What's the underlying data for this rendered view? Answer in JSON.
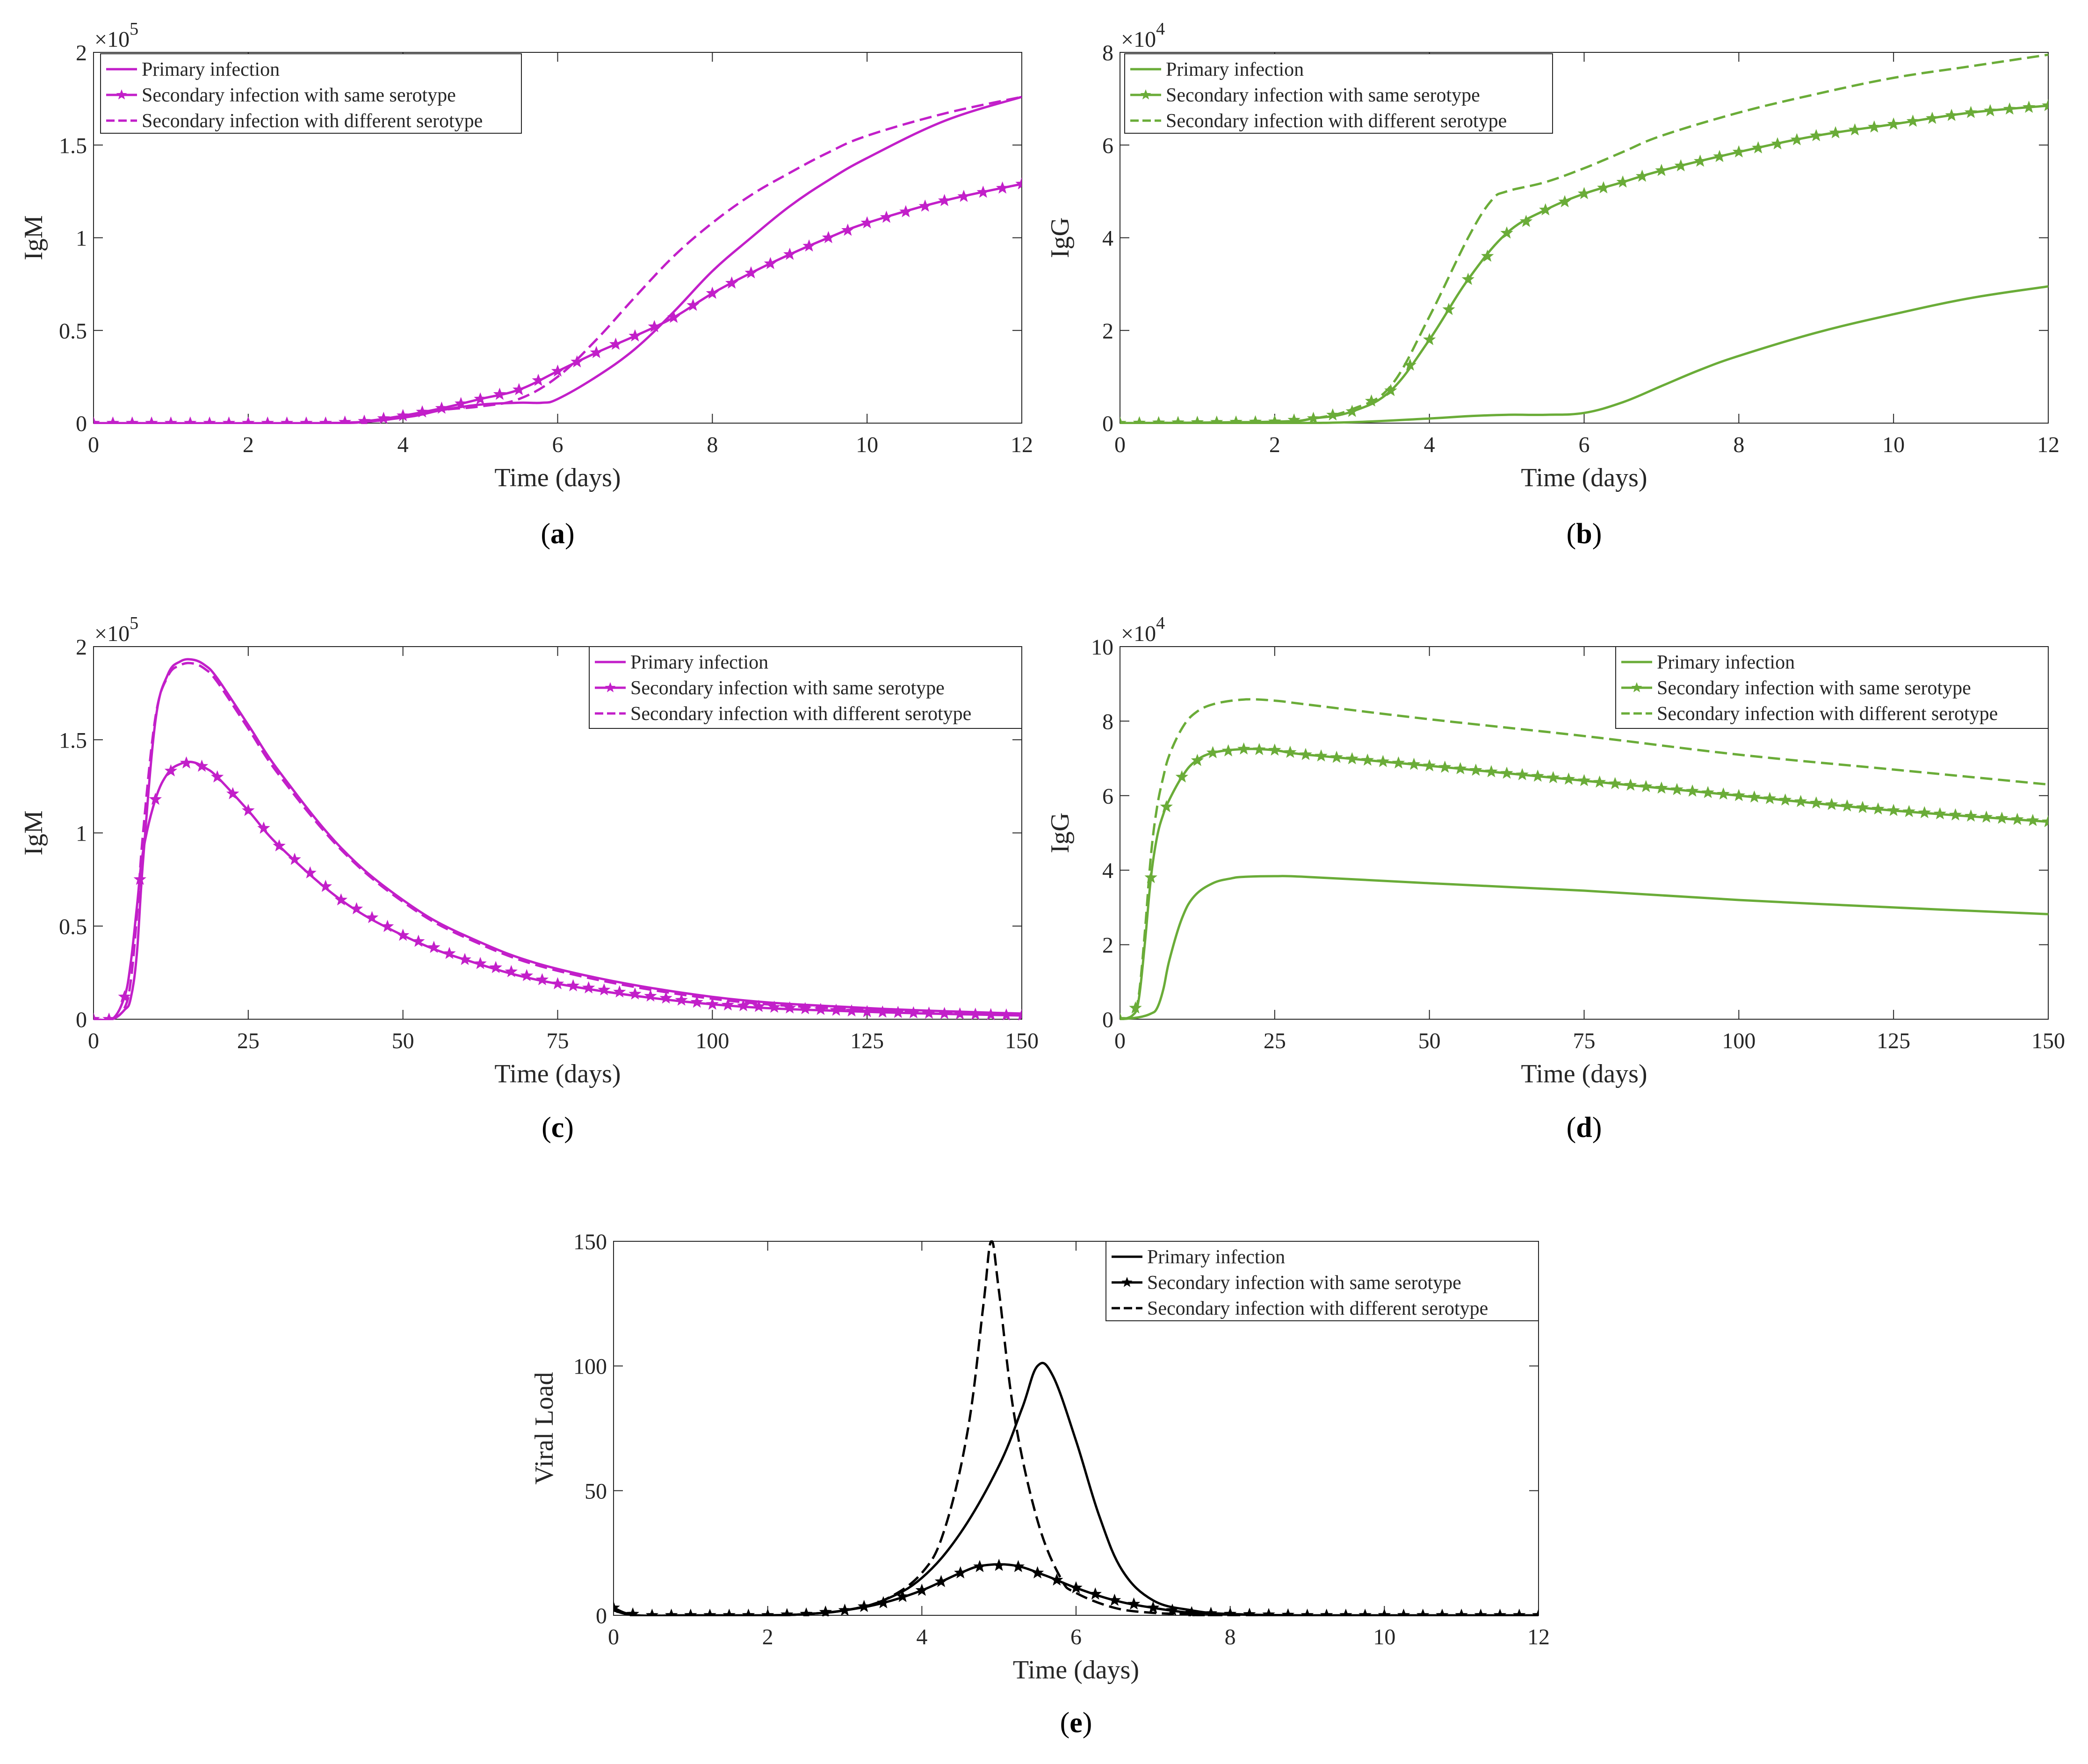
{
  "figure": {
    "legend_labels": [
      "Primary infection",
      "Secondary infection with same serotype",
      "Secondary infection with different serotype"
    ]
  },
  "chart_data": [
    {
      "id": "a",
      "type": "line",
      "caption": "a",
      "title": "",
      "xlabel": "Time (days)",
      "ylabel": "IgM",
      "exponent_label": "×10",
      "exponent": "5",
      "xlim": [
        0,
        12
      ],
      "ylim": [
        0,
        2
      ],
      "xticks": [
        "0",
        "2",
        "4",
        "6",
        "8",
        "10",
        "12"
      ],
      "yticks": [
        "0",
        "0.5",
        "1",
        "1.5",
        "2"
      ],
      "color": "#c21fc9",
      "legend_position": "top-left",
      "series": [
        {
          "name": "Primary infection",
          "style": "solid",
          "x": [
            0,
            3,
            4,
            4.5,
            5,
            5.5,
            5.8,
            6,
            6.5,
            7,
            7.5,
            8,
            8.5,
            9,
            9.5,
            10,
            11,
            12
          ],
          "y": [
            0,
            0,
            0.03,
            0.07,
            0.1,
            0.11,
            0.11,
            0.13,
            0.25,
            0.4,
            0.6,
            0.82,
            1.0,
            1.17,
            1.31,
            1.43,
            1.63,
            1.76
          ]
        },
        {
          "name": "Secondary infection with same serotype",
          "style": "star",
          "x": [
            0,
            3,
            3.5,
            4,
            4.5,
            5,
            5.5,
            6,
            6.5,
            7,
            7.5,
            8,
            8.5,
            9,
            9.5,
            10,
            11,
            12
          ],
          "y": [
            0,
            0,
            0.01,
            0.04,
            0.08,
            0.13,
            0.18,
            0.28,
            0.38,
            0.47,
            0.57,
            0.7,
            0.81,
            0.91,
            1.0,
            1.08,
            1.2,
            1.29
          ]
        },
        {
          "name": "Secondary infection with different serotype",
          "style": "dashdot",
          "x": [
            0,
            3,
            4,
            4.5,
            5,
            5.5,
            6,
            6.5,
            7,
            7.5,
            8,
            8.5,
            9,
            9.5,
            10,
            11,
            12
          ],
          "y": [
            0,
            0,
            0.03,
            0.07,
            0.09,
            0.13,
            0.25,
            0.45,
            0.68,
            0.9,
            1.08,
            1.23,
            1.35,
            1.46,
            1.55,
            1.67,
            1.76
          ]
        }
      ]
    },
    {
      "id": "b",
      "type": "line",
      "caption": "b",
      "title": "",
      "xlabel": "Time (days)",
      "ylabel": "IgG",
      "exponent_label": "×10",
      "exponent": "4",
      "xlim": [
        0,
        12
      ],
      "ylim": [
        0,
        8
      ],
      "xticks": [
        "0",
        "2",
        "4",
        "6",
        "8",
        "10",
        "12"
      ],
      "yticks": [
        "0",
        "2",
        "4",
        "6",
        "8"
      ],
      "color": "#6aac38",
      "legend_position": "top-left",
      "series": [
        {
          "name": "Primary infection",
          "style": "solid",
          "x": [
            0,
            2,
            3,
            4,
            4.5,
            5,
            5.5,
            6,
            6.5,
            7,
            7.5,
            8,
            9,
            10,
            11,
            12
          ],
          "y": [
            0,
            0,
            0.02,
            0.1,
            0.15,
            0.18,
            0.18,
            0.22,
            0.45,
            0.8,
            1.15,
            1.45,
            1.95,
            2.35,
            2.7,
            2.95
          ]
        },
        {
          "name": "Secondary infection with same serotype",
          "style": "star",
          "x": [
            0,
            2,
            2.5,
            3,
            3.5,
            4,
            4.5,
            5,
            5.5,
            6,
            6.5,
            7,
            8,
            9,
            10,
            11,
            12
          ],
          "y": [
            0,
            0.03,
            0.1,
            0.25,
            0.7,
            1.8,
            3.1,
            4.1,
            4.6,
            4.95,
            5.2,
            5.45,
            5.85,
            6.2,
            6.45,
            6.7,
            6.85
          ]
        },
        {
          "name": "Secondary infection with different serotype",
          "style": "dashdot",
          "x": [
            0,
            2,
            2.5,
            3,
            3.5,
            4,
            4.5,
            4.8,
            5,
            5.5,
            6,
            6.5,
            7,
            8,
            9,
            10,
            11,
            12
          ],
          "y": [
            0,
            0.03,
            0.1,
            0.3,
            0.8,
            2.3,
            4.0,
            4.8,
            5.0,
            5.2,
            5.5,
            5.85,
            6.2,
            6.7,
            7.1,
            7.45,
            7.7,
            7.95
          ]
        }
      ]
    },
    {
      "id": "c",
      "type": "line",
      "caption": "c",
      "title": "",
      "xlabel": "Time (days)",
      "ylabel": "IgM",
      "exponent_label": "×10",
      "exponent": "5",
      "xlim": [
        0,
        150
      ],
      "ylim": [
        0,
        2
      ],
      "xticks": [
        "0",
        "25",
        "50",
        "75",
        "100",
        "125",
        "150"
      ],
      "yticks": [
        "0",
        "0.5",
        "1",
        "1.5",
        "2"
      ],
      "color": "#c21fc9",
      "legend_position": "top-right",
      "series": [
        {
          "name": "Primary infection",
          "style": "solid",
          "x": [
            0,
            3,
            5,
            6,
            7,
            8,
            10,
            12,
            14,
            16,
            18,
            20,
            25,
            30,
            40,
            50,
            60,
            75,
            100,
            125,
            150
          ],
          "y": [
            0,
            0,
            0.05,
            0.11,
            0.35,
            0.85,
            1.6,
            1.85,
            1.92,
            1.93,
            1.9,
            1.83,
            1.58,
            1.33,
            0.92,
            0.64,
            0.45,
            0.27,
            0.12,
            0.06,
            0.03
          ]
        },
        {
          "name": "Secondary infection with same serotype",
          "style": "star",
          "x": [
            0,
            3,
            5,
            6,
            7,
            8,
            10,
            12,
            14,
            16,
            18,
            20,
            25,
            30,
            40,
            50,
            60,
            75,
            100,
            125,
            150
          ],
          "y": [
            0,
            0,
            0.12,
            0.3,
            0.6,
            0.9,
            1.18,
            1.32,
            1.37,
            1.38,
            1.35,
            1.3,
            1.12,
            0.93,
            0.64,
            0.45,
            0.32,
            0.19,
            0.08,
            0.04,
            0.02
          ]
        },
        {
          "name": "Secondary infection with different serotype",
          "style": "dashdot",
          "x": [
            0,
            3,
            5,
            6,
            7,
            8,
            10,
            12,
            14,
            16,
            18,
            20,
            25,
            30,
            40,
            50,
            60,
            75,
            100,
            125,
            150
          ],
          "y": [
            0,
            0,
            0.06,
            0.2,
            0.55,
            1.0,
            1.62,
            1.84,
            1.9,
            1.91,
            1.88,
            1.81,
            1.56,
            1.31,
            0.91,
            0.63,
            0.44,
            0.26,
            0.11,
            0.05,
            0.03
          ]
        }
      ]
    },
    {
      "id": "d",
      "type": "line",
      "caption": "d",
      "title": "",
      "xlabel": "Time (days)",
      "ylabel": "IgG",
      "exponent_label": "×10",
      "exponent": "4",
      "xlim": [
        0,
        150
      ],
      "ylim": [
        0,
        10
      ],
      "xticks": [
        "0",
        "25",
        "50",
        "75",
        "100",
        "125",
        "150"
      ],
      "yticks": [
        "0",
        "2",
        "4",
        "6",
        "8",
        "10"
      ],
      "color": "#6aac38",
      "legend_position": "top-right",
      "series": [
        {
          "name": "Primary infection",
          "style": "solid",
          "x": [
            0,
            3,
            5,
            6,
            7,
            8,
            10,
            12,
            15,
            18,
            20,
            25,
            30,
            50,
            75,
            100,
            125,
            150
          ],
          "y": [
            0,
            0.05,
            0.15,
            0.3,
            0.8,
            1.6,
            2.7,
            3.3,
            3.65,
            3.78,
            3.82,
            3.84,
            3.82,
            3.65,
            3.45,
            3.2,
            3.0,
            2.82
          ]
        },
        {
          "name": "Secondary infection with same serotype",
          "style": "star",
          "x": [
            0,
            2,
            3,
            4,
            5,
            6,
            7,
            8,
            10,
            12,
            15,
            20,
            25,
            30,
            50,
            75,
            100,
            125,
            150
          ],
          "y": [
            0,
            0.1,
            0.5,
            2.0,
            3.8,
            4.9,
            5.5,
            5.9,
            6.5,
            6.9,
            7.15,
            7.25,
            7.22,
            7.1,
            6.8,
            6.4,
            6.0,
            5.6,
            5.3
          ]
        },
        {
          "name": "Secondary infection with different serotype",
          "style": "dashdot",
          "x": [
            0,
            2,
            3,
            4,
            5,
            6,
            7,
            8,
            10,
            12,
            15,
            20,
            25,
            30,
            50,
            75,
            100,
            125,
            150
          ],
          "y": [
            0,
            0.1,
            0.6,
            2.3,
            4.4,
            5.7,
            6.5,
            7.1,
            7.8,
            8.2,
            8.45,
            8.58,
            8.55,
            8.45,
            8.05,
            7.6,
            7.1,
            6.7,
            6.3
          ]
        }
      ]
    },
    {
      "id": "e",
      "type": "line",
      "caption": "e",
      "title": "",
      "xlabel": "Time (days)",
      "ylabel": "Viral Load",
      "exponent_label": "",
      "exponent": "",
      "xlim": [
        0,
        12
      ],
      "ylim": [
        0,
        150
      ],
      "xticks": [
        "0",
        "2",
        "4",
        "6",
        "8",
        "10",
        "12"
      ],
      "yticks": [
        "0",
        "50",
        "100",
        "150"
      ],
      "color": "#000000",
      "legend_position": "top-right",
      "series": [
        {
          "name": "Primary infection",
          "style": "solid",
          "x": [
            0,
            0.3,
            1,
            2,
            2.5,
            3,
            3.5,
            4,
            4.5,
            5,
            5.3,
            5.5,
            5.7,
            6,
            6.3,
            6.6,
            7,
            7.5,
            8,
            9,
            12
          ],
          "y": [
            2,
            0,
            0,
            0,
            0.5,
            2,
            6,
            15,
            33,
            60,
            83,
            100,
            96,
            70,
            40,
            18,
            6,
            2,
            0.5,
            0,
            0
          ]
        },
        {
          "name": "Secondary infection with same serotype",
          "style": "star",
          "x": [
            0,
            0.3,
            1,
            2,
            2.5,
            3,
            3.5,
            4,
            4.5,
            4.8,
            5.2,
            5.6,
            6,
            6.5,
            7,
            7.5,
            8,
            9,
            12
          ],
          "y": [
            3,
            0,
            0,
            0,
            0.5,
            2,
            5,
            10,
            17,
            20,
            20,
            16,
            11,
            6,
            3,
            1,
            0.5,
            0,
            0
          ]
        },
        {
          "name": "Secondary infection with different serotype",
          "style": "dashdot",
          "x": [
            0,
            0.3,
            1,
            2,
            2.5,
            3,
            3.5,
            4,
            4.3,
            4.6,
            4.8,
            4.9,
            5.0,
            5.2,
            5.5,
            5.8,
            6,
            6.5,
            7,
            7.5,
            8,
            12
          ],
          "y": [
            2,
            0,
            0,
            0,
            0.5,
            2,
            6,
            17,
            35,
            75,
            125,
            150,
            130,
            80,
            38,
            15,
            9,
            3,
            1,
            0.5,
            0,
            0
          ]
        }
      ]
    }
  ]
}
